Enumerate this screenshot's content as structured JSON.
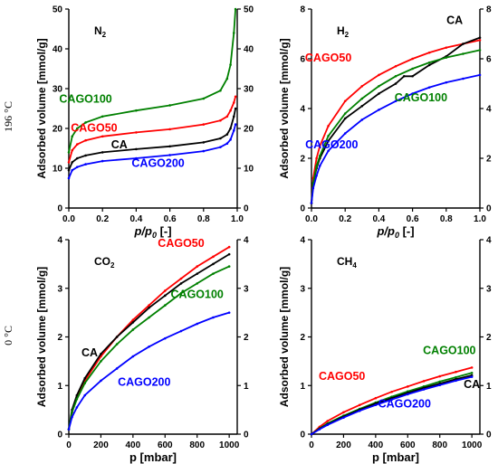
{
  "row_labels": [
    "196 °C",
    "0 °C"
  ],
  "colors": {
    "CA": "#000000",
    "CAGO50": "#ff0000",
    "CAGO100": "#008000",
    "CAGO200": "#0000ff"
  },
  "chart_data": [
    {
      "type": "line",
      "gas_label": "N₂",
      "xlabel": "p/p₀ [-]",
      "ylabel": "Adsorbed volume [mmol/g]",
      "xlim": [
        0,
        1.0
      ],
      "ylim": [
        0,
        50
      ],
      "xticks": [
        "0.0",
        "0.2",
        "0.4",
        "0.6",
        "0.8",
        "1.0"
      ],
      "yticks": [
        "0",
        "10",
        "20",
        "30",
        "40",
        "50"
      ],
      "right_axis": true,
      "series": [
        {
          "name": "CAGO100",
          "x": [
            0.0,
            0.02,
            0.05,
            0.1,
            0.2,
            0.4,
            0.6,
            0.8,
            0.9,
            0.94,
            0.96,
            0.98,
            0.99
          ],
          "values": [
            14.0,
            18.0,
            20.0,
            21.5,
            23.0,
            24.5,
            25.8,
            27.5,
            29.5,
            32.5,
            36.0,
            44.0,
            50.0
          ]
        },
        {
          "name": "CAGO50",
          "x": [
            0.0,
            0.02,
            0.05,
            0.1,
            0.2,
            0.4,
            0.6,
            0.8,
            0.9,
            0.94,
            0.96,
            0.98,
            0.99
          ],
          "values": [
            11.5,
            14.5,
            16.0,
            17.0,
            18.0,
            19.0,
            19.8,
            21.0,
            22.0,
            23.0,
            24.5,
            26.5,
            28.0
          ]
        },
        {
          "name": "CA",
          "x": [
            0.0,
            0.02,
            0.05,
            0.1,
            0.2,
            0.4,
            0.6,
            0.8,
            0.9,
            0.94,
            0.96,
            0.98,
            0.99
          ],
          "values": [
            9.5,
            11.5,
            12.5,
            13.2,
            14.0,
            14.8,
            15.5,
            16.5,
            17.5,
            18.5,
            20.0,
            23.0,
            25.0
          ]
        },
        {
          "name": "CAGO200",
          "x": [
            0.0,
            0.02,
            0.05,
            0.1,
            0.2,
            0.4,
            0.6,
            0.8,
            0.9,
            0.94,
            0.96,
            0.98,
            0.99
          ],
          "values": [
            7.5,
            9.5,
            10.3,
            11.0,
            11.8,
            12.5,
            13.3,
            14.3,
            15.3,
            16.2,
            17.2,
            19.5,
            21.0
          ]
        }
      ],
      "labels": [
        {
          "text": "CAGO100",
          "series": "CAGO100",
          "x": 0.1,
          "y": 26.5
        },
        {
          "text": "CAGO50",
          "series": "CAGO50",
          "x": 0.15,
          "y": 19.2
        },
        {
          "text": "CA",
          "series": "CA",
          "x": 0.3,
          "y": 15.0
        },
        {
          "text": "CAGO200",
          "series": "CAGO200",
          "x": 0.53,
          "y": 10.3
        }
      ]
    },
    {
      "type": "line",
      "gas_label": "H₂",
      "xlabel": "p/p₀ [-]",
      "ylabel": "Adsorbed volume [mmol/g]",
      "xlim": [
        0,
        1.0
      ],
      "ylim": [
        0,
        8
      ],
      "xticks": [
        "0.0",
        "0.2",
        "0.4",
        "0.6",
        "0.8",
        "1.0"
      ],
      "yticks": [
        "0",
        "2",
        "4",
        "6",
        "8"
      ],
      "right_axis": true,
      "series": [
        {
          "name": "CAGO50",
          "x": [
            0.0,
            0.01,
            0.03,
            0.05,
            0.1,
            0.2,
            0.3,
            0.4,
            0.5,
            0.6,
            0.7,
            0.8,
            0.9,
            1.0
          ],
          "values": [
            0.2,
            1.2,
            2.0,
            2.5,
            3.3,
            4.3,
            4.9,
            5.35,
            5.7,
            6.0,
            6.25,
            6.45,
            6.6,
            6.75
          ]
        },
        {
          "name": "CA",
          "x": [
            0.0,
            0.01,
            0.03,
            0.05,
            0.1,
            0.2,
            0.3,
            0.4,
            0.5,
            0.55,
            0.6,
            0.7,
            0.8,
            0.9,
            1.0
          ],
          "values": [
            0.2,
            1.0,
            1.6,
            2.0,
            2.7,
            3.6,
            4.1,
            4.6,
            5.0,
            5.3,
            5.3,
            5.75,
            6.1,
            6.6,
            6.85
          ]
        },
        {
          "name": "CAGO100",
          "x": [
            0.0,
            0.01,
            0.03,
            0.05,
            0.1,
            0.2,
            0.3,
            0.4,
            0.5,
            0.6,
            0.7,
            0.8,
            0.9,
            1.0
          ],
          "values": [
            0.2,
            1.0,
            1.7,
            2.1,
            2.9,
            3.8,
            4.4,
            4.9,
            5.3,
            5.6,
            5.85,
            6.05,
            6.2,
            6.35
          ]
        },
        {
          "name": "CAGO200",
          "x": [
            0.0,
            0.01,
            0.03,
            0.05,
            0.1,
            0.2,
            0.3,
            0.4,
            0.5,
            0.6,
            0.7,
            0.8,
            0.9,
            1.0
          ],
          "values": [
            0.2,
            0.8,
            1.3,
            1.7,
            2.3,
            3.0,
            3.55,
            3.95,
            4.3,
            4.6,
            4.85,
            5.05,
            5.2,
            5.35
          ]
        }
      ],
      "labels": [
        {
          "text": "CA",
          "series": "CA",
          "x": 0.85,
          "y": 7.4
        },
        {
          "text": "CAGO50",
          "series": "CAGO50",
          "x": 0.1,
          "y": 5.9
        },
        {
          "text": "CAGO100",
          "series": "CAGO100",
          "x": 0.65,
          "y": 4.3
        },
        {
          "text": "CAGO200",
          "series": "CAGO200",
          "x": 0.12,
          "y": 2.4
        }
      ]
    },
    {
      "type": "line",
      "gas_label": "CO₂",
      "xlabel": "p [mbar]",
      "ylabel": "Adsorbed volume [mmol/g]",
      "xlim": [
        0,
        1050
      ],
      "ylim": [
        0,
        4
      ],
      "xticks": [
        "0",
        "200",
        "400",
        "600",
        "800",
        "1000"
      ],
      "yticks": [
        "0",
        "1",
        "2",
        "3",
        "4"
      ],
      "right_axis": true,
      "series": [
        {
          "name": "CAGO50",
          "x": [
            0,
            20,
            50,
            100,
            200,
            300,
            400,
            500,
            600,
            700,
            800,
            900,
            1000
          ],
          "values": [
            0.1,
            0.45,
            0.75,
            1.1,
            1.6,
            2.0,
            2.35,
            2.65,
            2.95,
            3.2,
            3.45,
            3.65,
            3.85
          ]
        },
        {
          "name": "CA",
          "x": [
            0,
            20,
            50,
            100,
            200,
            300,
            400,
            500,
            600,
            700,
            800,
            900,
            1000
          ],
          "values": [
            0.1,
            0.5,
            0.8,
            1.15,
            1.65,
            2.0,
            2.3,
            2.6,
            2.85,
            3.1,
            3.3,
            3.5,
            3.7
          ]
        },
        {
          "name": "CAGO100",
          "x": [
            0,
            20,
            50,
            100,
            200,
            300,
            400,
            500,
            600,
            700,
            800,
            900,
            1000
          ],
          "values": [
            0.1,
            0.45,
            0.72,
            1.05,
            1.5,
            1.85,
            2.15,
            2.4,
            2.65,
            2.9,
            3.1,
            3.3,
            3.45
          ]
        },
        {
          "name": "CAGO200",
          "x": [
            0,
            20,
            50,
            100,
            200,
            300,
            400,
            500,
            600,
            700,
            800,
            900,
            1000
          ],
          "values": [
            0.1,
            0.35,
            0.55,
            0.8,
            1.1,
            1.35,
            1.6,
            1.8,
            1.97,
            2.12,
            2.27,
            2.4,
            2.5
          ]
        }
      ],
      "labels": [
        {
          "text": "CAGO50",
          "series": "CAGO50",
          "x": 700,
          "y": 3.85
        },
        {
          "text": "CA",
          "series": "CA",
          "x": 130,
          "y": 1.6
        },
        {
          "text": "CAGO100",
          "series": "CAGO100",
          "x": 800,
          "y": 2.8
        },
        {
          "text": "CAGO200",
          "series": "CAGO200",
          "x": 470,
          "y": 1.0
        }
      ]
    },
    {
      "type": "line",
      "gas_label": "CH₄",
      "xlabel": "p [mbar]",
      "ylabel": "Adsorbed volume [mmol/g]",
      "xlim": [
        0,
        1050
      ],
      "ylim": [
        0,
        4
      ],
      "xticks": [
        "0",
        "200",
        "400",
        "600",
        "800",
        "1000"
      ],
      "yticks": [
        "0",
        "1",
        "2",
        "3",
        "4"
      ],
      "right_axis": true,
      "series": [
        {
          "name": "CAGO50",
          "x": [
            0,
            50,
            100,
            200,
            300,
            400,
            500,
            600,
            700,
            800,
            900,
            1000
          ],
          "values": [
            0.0,
            0.15,
            0.27,
            0.45,
            0.6,
            0.74,
            0.87,
            0.98,
            1.09,
            1.19,
            1.28,
            1.37
          ]
        },
        {
          "name": "CAGO100",
          "x": [
            0,
            50,
            100,
            200,
            300,
            400,
            500,
            600,
            700,
            800,
            900,
            1000
          ],
          "values": [
            0.0,
            0.12,
            0.22,
            0.38,
            0.52,
            0.65,
            0.77,
            0.88,
            0.98,
            1.08,
            1.17,
            1.26
          ]
        },
        {
          "name": "CA",
          "x": [
            0,
            50,
            100,
            200,
            300,
            400,
            500,
            600,
            700,
            800,
            900,
            1000
          ],
          "values": [
            0.0,
            0.11,
            0.2,
            0.36,
            0.5,
            0.63,
            0.74,
            0.85,
            0.95,
            1.04,
            1.13,
            1.21
          ]
        },
        {
          "name": "CAGO200",
          "x": [
            0,
            50,
            100,
            200,
            300,
            400,
            500,
            600,
            700,
            800,
            900,
            1000
          ],
          "values": [
            0.0,
            0.1,
            0.19,
            0.34,
            0.48,
            0.6,
            0.71,
            0.82,
            0.92,
            1.01,
            1.1,
            1.18
          ]
        }
      ],
      "labels": [
        {
          "text": "CAGO100",
          "series": "CAGO100",
          "x": 860,
          "y": 1.65
        },
        {
          "text": "CAGO50",
          "series": "CAGO50",
          "x": 190,
          "y": 1.12
        },
        {
          "text": "CA",
          "series": "CA",
          "x": 1000,
          "y": 0.95
        },
        {
          "text": "CAGO200",
          "series": "CAGO200",
          "x": 580,
          "y": 0.55
        }
      ]
    }
  ]
}
